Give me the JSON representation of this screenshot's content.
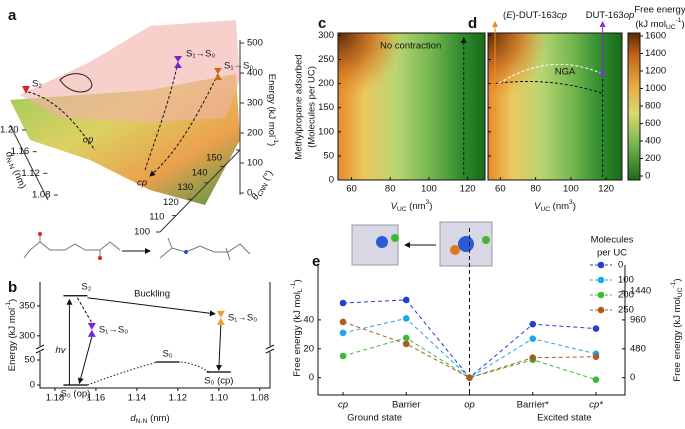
{
  "chart_data": [
    {
      "type": "surface",
      "label": "a",
      "zlabel": [
        {
          "t": "Energy (kJ mol"
        },
        {
          "sup": "-1"
        },
        {
          "t": ")"
        }
      ],
      "xlabel": [
        {
          "i": "d"
        },
        {
          "sub": "N-N"
        },
        {
          "t": " (nm)"
        }
      ],
      "ylabel": [
        {
          "i": "θ"
        },
        {
          "sub": "CNN"
        },
        {
          "t": " (°)"
        }
      ],
      "zticks": [
        0,
        100,
        200,
        300,
        400,
        500
      ],
      "xticks": [
        {
          "value": 1.2,
          "label": "1.20"
        },
        1.16,
        1.12,
        1.08
      ],
      "yticks": [
        100,
        110,
        120,
        130,
        140,
        150
      ],
      "annotations": [
        "S₂",
        "S₁→S₀",
        "S₁→S₀",
        "op",
        "cp"
      ]
    },
    {
      "type": "energy",
      "label": "b",
      "xlabel": [
        {
          "i": "d"
        },
        {
          "sub": "N-N"
        },
        {
          "t": " (nm)"
        }
      ],
      "ylabel": [
        {
          "t": "Energy  (kJ mol"
        },
        {
          "sup": "-1"
        },
        {
          "t": ")"
        }
      ],
      "xlim": [
        1.1873,
        1.075
      ],
      "xticks": [
        1.18,
        1.16,
        1.14,
        1.12,
        {
          "value": 1.1,
          "label": "1.10"
        },
        1.08
      ],
      "ylim": [
        -6,
        390
      ],
      "ybreak": [
        72,
        278
      ],
      "yticks": [
        0,
        50,
        300,
        350
      ],
      "levels": {
        "names": [
          "S₂",
          "S₁→S₀",
          "S₁→S₀",
          "S₀",
          "S₀ (op)",
          "S₀ (cp)"
        ],
        "x": [
          1.17,
          1.162,
          1.099,
          1.125,
          1.17,
          1.1
        ],
        "values": [
          367,
          310,
          330,
          46,
          0,
          26
        ],
        "colors": [
          "#000000",
          "#7b22d6",
          "#f39c2f",
          "#000000",
          "#000000",
          "#000000"
        ]
      },
      "annotations": [
        "hv",
        "Buckling"
      ]
    },
    {
      "type": "heatmap",
      "label": "c",
      "title": "No contraction",
      "xlabel": [
        {
          "i": "V"
        },
        {
          "sub": "UC"
        },
        {
          "t": " (nm"
        },
        {
          "sup": "3"
        },
        {
          "t": ")"
        }
      ],
      "ylabel": [
        "Methylpropane adsorbed",
        "(Molecules per UC)"
      ],
      "xlim": [
        53,
        129
      ],
      "xticks": [
        60,
        80,
        100,
        120
      ],
      "ylim": [
        0,
        305
      ],
      "yticks": [
        0,
        50,
        100,
        150,
        200,
        250,
        300
      ]
    },
    {
      "type": "heatmap",
      "label": "d",
      "xlabel": [
        {
          "i": "V"
        },
        {
          "sub": "UC"
        },
        {
          "t": " (nm"
        },
        {
          "sup": "3"
        },
        {
          "t": ")"
        }
      ],
      "xlim": [
        53,
        129
      ],
      "xticks": [
        60,
        80,
        100,
        120
      ],
      "ylim": [
        0,
        305
      ],
      "yticks": [
        0,
        50,
        100,
        150,
        200,
        250,
        300
      ],
      "annotations": [
        [
          {
            "t": "("
          },
          {
            "i": "E"
          },
          {
            "t": ")-DUT-163"
          },
          {
            "i": "cp"
          }
        ],
        [
          {
            "t": "DUT-163"
          },
          {
            "i": "op"
          }
        ],
        "NGA"
      ],
      "annotation_colors": [
        "#f08a1c",
        "#8a2be2",
        "#ffffff"
      ],
      "colorbar": {
        "label": [
          "Free energy",
          [
            {
              "t": "(kJ mol"
            },
            {
              "sub": "UC"
            },
            {
              "sup": "-1"
            },
            {
              "t": ")"
            }
          ]
        ],
        "clim": [
          -46,
          1634
        ],
        "cticks": [
          0,
          200,
          400,
          600,
          800,
          1000,
          1200,
          1400,
          1600
        ]
      }
    },
    {
      "type": "line",
      "label": "e",
      "categories": [
        "cp",
        "Barrier",
        "op",
        "Barrier*",
        "cp*"
      ],
      "category_italic": [
        true,
        false,
        true,
        false,
        true
      ],
      "groups": [
        "Ground state",
        "Excited state"
      ],
      "ylabel": [
        {
          "t": "Free energy (kJ mol"
        },
        {
          "sub": "L"
        },
        {
          "sup": "-1"
        },
        {
          "t": ")"
        }
      ],
      "y2label": [
        {
          "t": "Free energy (kJ mol"
        },
        {
          "sub": "UC"
        },
        {
          "sup": "-1"
        },
        {
          "t": ")"
        }
      ],
      "ylim": [
        -12,
        78
      ],
      "yticks": [
        0,
        20,
        40
      ],
      "y2lim": [
        -288,
        1872
      ],
      "y2ticks": [
        0,
        480,
        960,
        1440
      ],
      "legend_title": [
        "Molecules",
        "per UC"
      ],
      "series": [
        {
          "name": "0",
          "color": "#1f3fd8",
          "values": [
            51.7,
            53.8,
            0,
            37,
            34
          ]
        },
        {
          "name": "100",
          "color": "#1ea8e6",
          "values": [
            31,
            41,
            0,
            27,
            16.5
          ]
        },
        {
          "name": "200",
          "color": "#3cb832",
          "values": [
            15,
            27.5,
            0,
            12.4,
            -1.4
          ]
        },
        {
          "name": "250",
          "color": "#b05a1e",
          "values": [
            38.6,
            23.4,
            0,
            13.8,
            14.5
          ]
        }
      ]
    }
  ]
}
